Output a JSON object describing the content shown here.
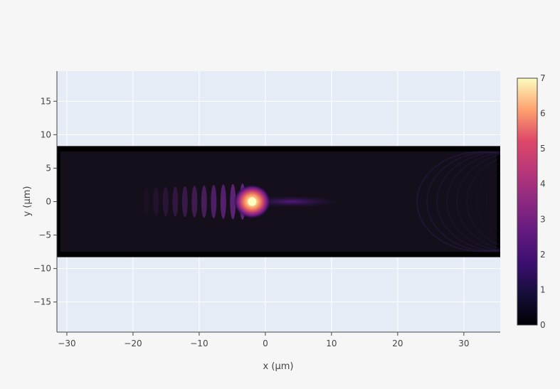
{
  "chart_data": {
    "type": "heatmap",
    "title": "",
    "xlabel": "x (µm)",
    "ylabel": "y (µm)",
    "xlim": [
      -31.5,
      35.5
    ],
    "ylim": [
      -19.5,
      19.5
    ],
    "x_ticks": [
      -30,
      -20,
      -10,
      0,
      10,
      20,
      30
    ],
    "x_tick_labels": [
      "−30",
      "−20",
      "−10",
      "0",
      "10",
      "20",
      "30"
    ],
    "y_ticks": [
      15,
      10,
      5,
      0,
      -5,
      -10,
      -15
    ],
    "y_tick_labels": [
      "15",
      "10",
      "5",
      "0",
      "−5",
      "−10",
      "−15"
    ],
    "grid": true,
    "data_extent": {
      "x": [
        -31.5,
        35.5
      ],
      "y": [
        -8.3,
        8.3
      ]
    },
    "hotspot": {
      "x": -2,
      "y": 0,
      "value": 7
    },
    "colorscale": "magma",
    "colorbar": {
      "range": [
        0,
        7
      ],
      "ticks": [
        0,
        1,
        2,
        3,
        4,
        5,
        6,
        7
      ],
      "tick_labels": [
        "0",
        "1",
        "2",
        "3",
        "4",
        "5",
        "6",
        "7"
      ]
    },
    "colors": {
      "plot_bg": "#e5ecf6",
      "paper_bg": "#f6f6f6",
      "grid": "#ffffff",
      "border": "#000000"
    }
  }
}
